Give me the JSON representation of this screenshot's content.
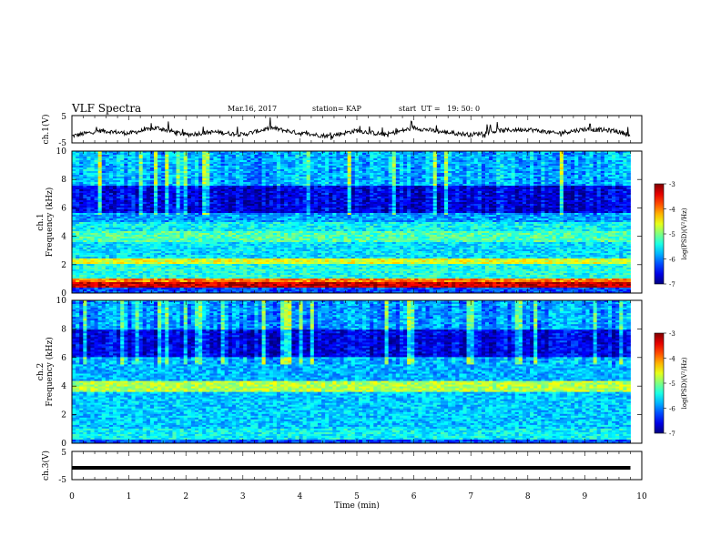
{
  "header": {
    "title": "VLF Spectra",
    "date": "Mar.16, 2017",
    "station": "station= KAP",
    "start_ut": "start  UT =   19: 50: 0"
  },
  "chart_data": [
    {
      "type": "line",
      "panel": "ch1_waveform",
      "ylabel": "ch.1(V)",
      "ylim": [
        -5,
        5
      ],
      "yticks": [
        "5",
        "-5"
      ],
      "x": [
        0,
        0.5,
        1,
        1.5,
        2,
        2.5,
        3,
        3.5,
        4,
        4.5,
        5,
        5.5,
        6,
        6.5,
        7,
        7.5,
        8,
        8.5,
        9,
        9.5,
        9.8
      ],
      "values": [
        -2.5,
        -0.5,
        -1.5,
        0.5,
        -2.0,
        -1.0,
        -2.0,
        0.5,
        -1.5,
        -2.5,
        -0.5,
        -2.0,
        0.5,
        -1.0,
        -2.0,
        -0.5,
        0.0,
        -1.5,
        0.0,
        -0.5,
        -2.0
      ]
    },
    {
      "type": "heatmap",
      "panel": "ch1_spectrogram",
      "ylabel": [
        "ch.1",
        "Frequency  (kHz)"
      ],
      "ylim": [
        0,
        10
      ],
      "yticks": [
        "0",
        "2",
        "4",
        "6",
        "8",
        "10"
      ],
      "colorbar": {
        "label": "log(PSD)(V²/Hz)",
        "range": [
          -7,
          -3
        ],
        "ticks": [
          "-3",
          "-4",
          "-5",
          "-6",
          "-7"
        ]
      },
      "bands": [
        {
          "khz": [
            0.4,
            0.8
          ],
          "level": -3.3
        },
        {
          "khz": [
            0.8,
            1.0
          ],
          "level": -4.0
        },
        {
          "khz": [
            1.0,
            2.0
          ],
          "level": -5.4
        },
        {
          "khz": [
            2.0,
            2.4
          ],
          "level": -4.6
        },
        {
          "khz": [
            2.4,
            3.6
          ],
          "level": -5.6
        },
        {
          "khz": [
            3.6,
            4.4
          ],
          "level": -5.2
        },
        {
          "khz": [
            4.4,
            5.0
          ],
          "level": -5.5
        },
        {
          "khz": [
            5.0,
            5.6
          ],
          "level": -5.9
        },
        {
          "khz": [
            5.6,
            7.6
          ],
          "level": -6.6
        },
        {
          "khz": [
            7.6,
            10.0
          ],
          "level": -5.8
        }
      ]
    },
    {
      "type": "heatmap",
      "panel": "ch2_spectrogram",
      "ylabel": [
        "ch.2",
        "Frequency  (kHz)"
      ],
      "ylim": [
        0,
        10
      ],
      "yticks": [
        "0",
        "2",
        "4",
        "6",
        "8",
        "10"
      ],
      "colorbar": {
        "label": "log(PSD)(V²/Hz)",
        "range": [
          -7,
          -3
        ],
        "ticks": [
          "-3",
          "-4",
          "-5",
          "-6",
          "-7"
        ]
      },
      "bands": [
        {
          "khz": [
            0.2,
            1.0
          ],
          "level": -5.5
        },
        {
          "khz": [
            1.0,
            2.0
          ],
          "level": -5.7
        },
        {
          "khz": [
            2.0,
            3.6
          ],
          "level": -5.7
        },
        {
          "khz": [
            3.6,
            4.4
          ],
          "level": -4.8
        },
        {
          "khz": [
            4.4,
            6.0
          ],
          "level": -5.8
        },
        {
          "khz": [
            6.0,
            8.0
          ],
          "level": -6.6
        },
        {
          "khz": [
            8.0,
            10.0
          ],
          "level": -5.9
        }
      ]
    },
    {
      "type": "line",
      "panel": "ch3_waveform",
      "ylabel": "ch.3(V)",
      "ylim": [
        -5,
        5
      ],
      "yticks": [
        "5",
        "-5"
      ],
      "x": [
        0,
        9.8
      ],
      "values": [
        -0.8,
        -0.8
      ]
    }
  ],
  "x_axis": {
    "label": "Time  (min)",
    "ticks": [
      "0",
      "1",
      "2",
      "3",
      "4",
      "5",
      "6",
      "7",
      "8",
      "9",
      "10"
    ],
    "xlim": [
      0,
      10
    ],
    "data_end": 9.8
  }
}
